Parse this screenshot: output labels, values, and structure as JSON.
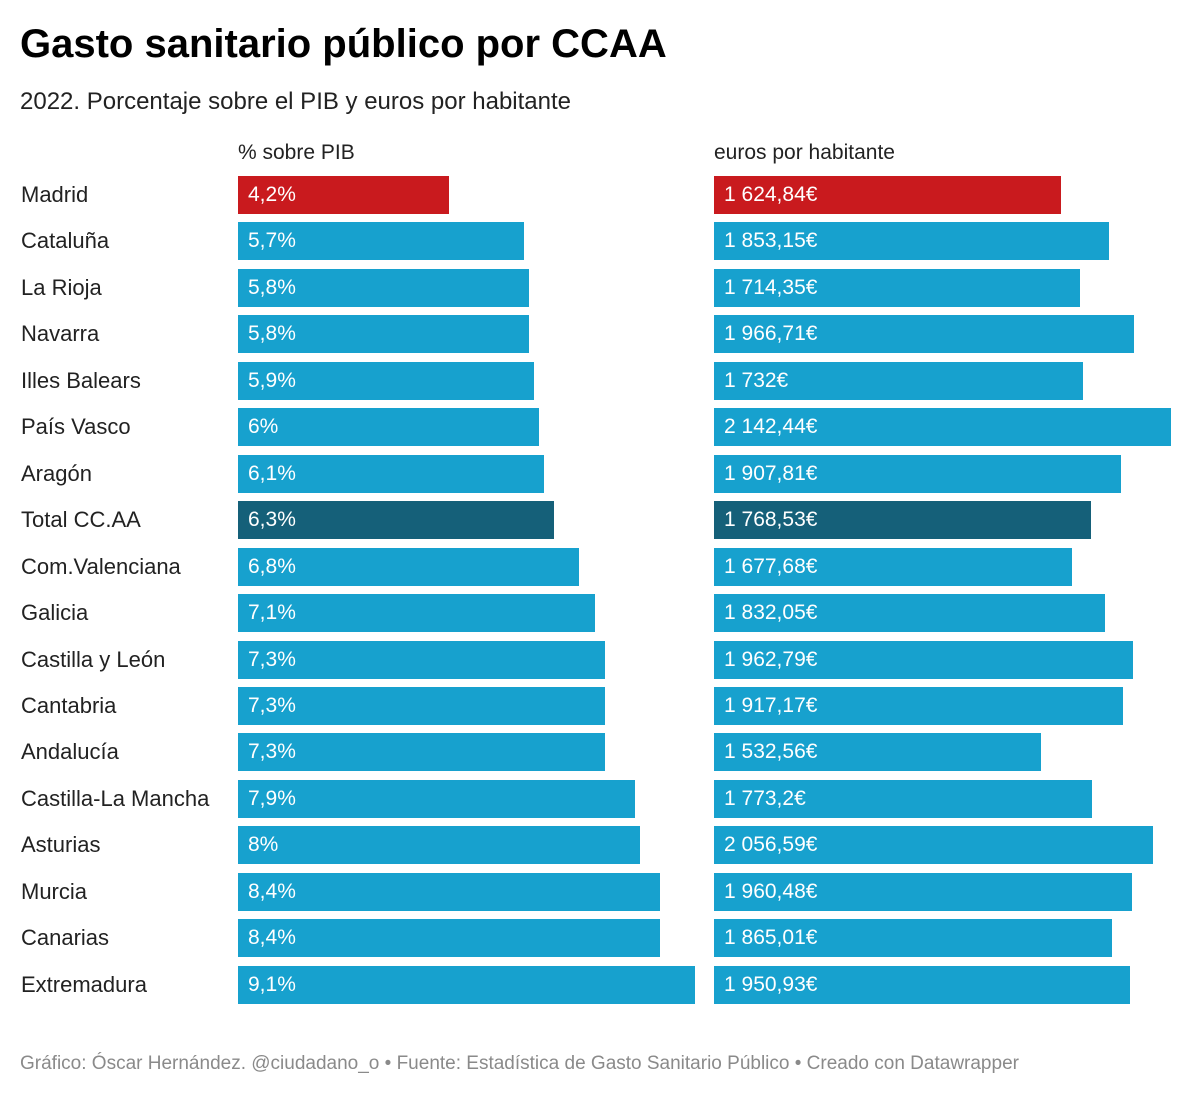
{
  "title": "Gasto sanitario público por CCAA",
  "subtitle": "2022. Porcentaje sobre el PIB y euros por habitante",
  "footer": "Gráfico: Óscar Hernández. @ciudadano_o • Fuente: Estadística de Gasto Sanitario Público • Creado con Datawrapper",
  "colors": {
    "default": "#17a1ce",
    "highlight": "#c91a1e",
    "total": "#156079"
  },
  "chart_data": {
    "type": "bar",
    "orientation": "horizontal",
    "categories": [
      "Madrid",
      "Cataluña",
      "La Rioja",
      "Navarra",
      "Illes Balears",
      "País Vasco",
      "Aragón",
      "Total CC.AA",
      "Com.Valenciana",
      "Galicia",
      "Castilla y León",
      "Cantabria",
      "Andalucía",
      "Castilla-La Mancha",
      "Asturias",
      "Murcia",
      "Canarias",
      "Extremadura"
    ],
    "highlight": {
      "Madrid": "highlight",
      "Total CC.AA": "total"
    },
    "series": [
      {
        "name": "% sobre PIB",
        "values": [
          4.2,
          5.7,
          5.8,
          5.8,
          5.9,
          6,
          6.1,
          6.3,
          6.8,
          7.1,
          7.3,
          7.3,
          7.3,
          7.9,
          8,
          8.4,
          8.4,
          9.1
        ],
        "labels": [
          "4,2%",
          "5,7%",
          "5,8%",
          "5,8%",
          "5,9%",
          "6%",
          "6,1%",
          "6,3%",
          "6,8%",
          "7,1%",
          "7,3%",
          "7,3%",
          "7,3%",
          "7,9%",
          "8%",
          "8,4%",
          "8,4%",
          "9,1%"
        ],
        "range": [
          0,
          9.1
        ]
      },
      {
        "name": "euros por habitante",
        "values": [
          1624.84,
          1853.15,
          1714.35,
          1966.71,
          1732,
          2142.44,
          1907.81,
          1768.53,
          1677.68,
          1832.05,
          1962.79,
          1917.17,
          1532.56,
          1773.2,
          2056.59,
          1960.48,
          1865.01,
          1950.93
        ],
        "labels": [
          "1 624,84€",
          "1 853,15€",
          "1 714,35€",
          "1 966,71€",
          "1 732€",
          "2 142,44€",
          "1 907,81€",
          "1 768,53€",
          "1 677,68€",
          "1 832,05€",
          "1 962,79€",
          "1 917,17€",
          "1 532,56€",
          "1 773,2€",
          "2 056,59€",
          "1 960,48€",
          "1 865,01€",
          "1 950,93€"
        ],
        "range": [
          0,
          2142.44
        ]
      }
    ]
  }
}
